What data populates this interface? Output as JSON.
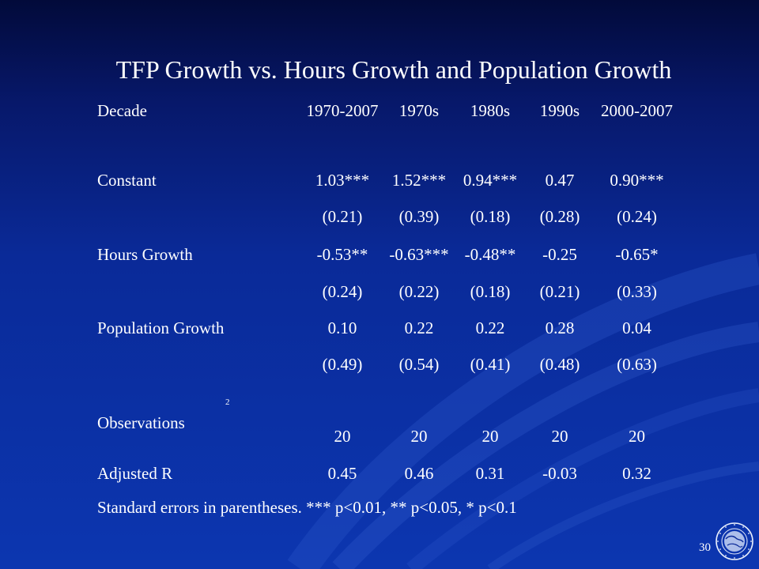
{
  "slide": {
    "title": "TFP Growth vs. Hours Growth and Population Growth",
    "page_number": "30",
    "logo": "imf-seal-logo"
  },
  "table": {
    "header": {
      "label": "Decade",
      "columns": [
        "1970-2007",
        "1970s",
        "1980s",
        "1990s",
        "2000-2007"
      ]
    },
    "rows": [
      {
        "label": "Constant",
        "values": [
          "1.03***",
          "1.52***",
          "0.94***",
          "0.47",
          "0.90***"
        ]
      },
      {
        "label": "",
        "values": [
          "(0.21)",
          "(0.39)",
          "(0.18)",
          "(0.28)",
          "(0.24)"
        ]
      },
      {
        "label": "Hours Growth",
        "values": [
          "-0.53**",
          "-0.63***",
          "-0.48**",
          "-0.25",
          "-0.65*"
        ]
      },
      {
        "label": "",
        "values": [
          "(0.24)",
          "(0.22)",
          "(0.18)",
          "(0.21)",
          "(0.33)"
        ]
      },
      {
        "label": "Population Growth",
        "values": [
          "0.10",
          "0.22",
          "0.22",
          "0.28",
          "0.04"
        ]
      },
      {
        "label": "",
        "values": [
          "(0.49)",
          "(0.54)",
          "(0.41)",
          "(0.48)",
          "(0.63)"
        ]
      },
      {
        "label": "Observations",
        "values": [
          "20",
          "20",
          "20",
          "20",
          "20"
        ]
      },
      {
        "label": "Adjusted R",
        "values": [
          "0.45",
          "0.46",
          "0.31",
          "-0.03",
          "0.32"
        ]
      }
    ],
    "superscript": "2",
    "footnote": "Standard errors in parentheses. *** p<0.01, ** p<0.05, * p<0.1"
  },
  "colors": {
    "background_top": "#020a3a",
    "background_bottom": "#0c36b0",
    "text": "#ffffff"
  }
}
